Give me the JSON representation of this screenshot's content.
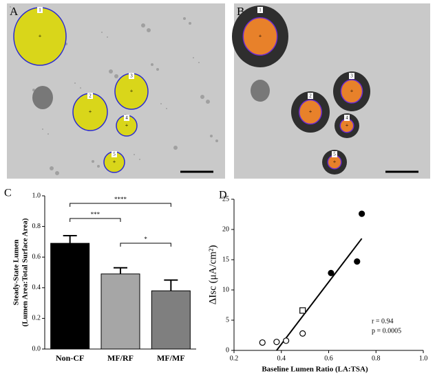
{
  "panel_a": {
    "label": "A",
    "organoid_labels": [
      "1",
      "2",
      "3",
      "4",
      "5"
    ]
  },
  "panel_b": {
    "label": "B",
    "organoid_labels": [
      "1",
      "2",
      "3",
      "4",
      "5"
    ]
  },
  "chart_data": [
    {
      "type": "bar",
      "label": "C",
      "y_label": [
        "Steady-State Lumen",
        "(Lumen Area:Total Surface Area)"
      ],
      "categories": [
        "Non-CF",
        "MF/RF",
        "MF/MF"
      ],
      "values": [
        0.69,
        0.49,
        0.38
      ],
      "errors": [
        0.05,
        0.04,
        0.07
      ],
      "colors": [
        "#000000",
        "#a6a6a6",
        "#7f7f7f"
      ],
      "ylim": [
        0,
        1.0
      ],
      "yticks": [
        {
          "value": 0,
          "label": "0.0"
        },
        {
          "value": 0.2,
          "label": "0.2"
        },
        {
          "value": 0.4,
          "label": "0.4"
        },
        {
          "value": 0.6,
          "label": "0.6"
        },
        {
          "value": 0.8,
          "label": "0.8"
        },
        {
          "value": 1.0,
          "label": "1.0"
        }
      ],
      "annotations": [
        {
          "text": "****",
          "between": [
            0,
            2
          ]
        },
        {
          "text": "***",
          "between": [
            0,
            1
          ]
        },
        {
          "text": "*",
          "between": [
            1,
            2
          ]
        }
      ]
    },
    {
      "type": "scatter",
      "label": "D",
      "x_label": "Baseline Lumen Ratio (LA:TSA)",
      "y_label": "ΔIsc (μA/cm²)",
      "xlim": [
        0.2,
        1.0
      ],
      "xticks": [
        0.2,
        0.4,
        0.6,
        0.8,
        {
          "value": 1.0,
          "label": "1.0"
        }
      ],
      "ylim": [
        0,
        25
      ],
      "yticks": [
        0,
        5,
        10,
        15,
        20,
        25
      ],
      "series": [
        {
          "marker": "open-circle",
          "color": "#000000",
          "x": [
            0.32,
            0.38,
            0.42,
            0.49
          ],
          "y": [
            1.3,
            1.4,
            1.6,
            2.8
          ]
        },
        {
          "marker": "open-square",
          "color": "#000000",
          "x": [
            0.49
          ],
          "y": [
            6.6
          ]
        },
        {
          "marker": "filled-circle",
          "color": "#000000",
          "x": [
            0.61,
            0.72,
            0.74
          ],
          "y": [
            12.8,
            14.7,
            22.6
          ]
        }
      ],
      "fit": {
        "x": [
          0.38,
          0.74
        ],
        "y": [
          0,
          18.5
        ]
      },
      "annotations": [
        "r = 0.94",
        "p = 0.0005"
      ]
    }
  ]
}
